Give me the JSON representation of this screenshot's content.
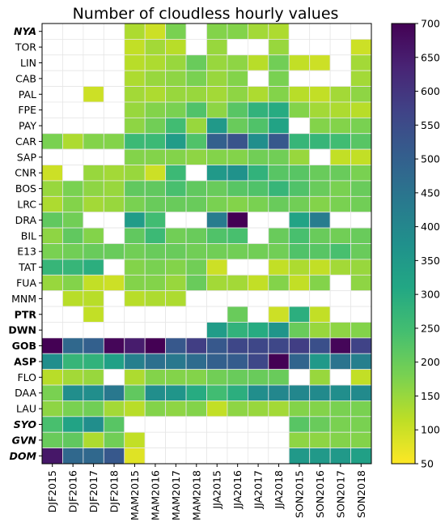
{
  "chart_data": {
    "type": "heatmap",
    "title": "Number of cloudless hourly values",
    "columns": [
      "DJF2015",
      "DJF2016",
      "DJF2017",
      "DJF2018",
      "MAM2015",
      "MAM2016",
      "MAM2017",
      "MAM2018",
      "JJA2015",
      "JJA2016",
      "JJA2017",
      "JJA2018",
      "SON2015",
      "SON2016",
      "SON2017",
      "SON2018"
    ],
    "rows": [
      {
        "label": "NYA",
        "style": "green-bold-italic",
        "values": [
          null,
          null,
          null,
          null,
          130,
          100,
          180,
          null,
          170,
          170,
          140,
          130,
          null,
          null,
          null,
          null
        ]
      },
      {
        "label": "TOR",
        "style": "normal",
        "values": [
          null,
          null,
          null,
          null,
          110,
          140,
          120,
          null,
          150,
          null,
          null,
          150,
          null,
          null,
          null,
          100
        ]
      },
      {
        "label": "LIN",
        "style": "normal",
        "values": [
          null,
          null,
          null,
          null,
          120,
          130,
          150,
          200,
          150,
          160,
          120,
          190,
          110,
          100,
          null,
          140
        ]
      },
      {
        "label": "CAB",
        "style": "normal",
        "values": [
          null,
          null,
          null,
          null,
          130,
          150,
          160,
          180,
          150,
          170,
          null,
          180,
          null,
          null,
          null,
          140
        ]
      },
      {
        "label": "PAL",
        "style": "normal",
        "values": [
          null,
          null,
          100,
          null,
          140,
          130,
          150,
          150,
          140,
          160,
          130,
          170,
          120,
          110,
          140,
          160
        ]
      },
      {
        "label": "FPE",
        "style": "normal",
        "values": [
          null,
          null,
          null,
          null,
          150,
          170,
          180,
          230,
          160,
          220,
          280,
          300,
          170,
          140,
          130,
          120
        ]
      },
      {
        "label": "PAY",
        "style": "normal",
        "values": [
          null,
          null,
          null,
          null,
          160,
          190,
          250,
          150,
          350,
          200,
          230,
          320,
          null,
          170,
          170,
          180
        ]
      },
      {
        "label": "CAR",
        "style": "normal",
        "values": [
          180,
          130,
          170,
          170,
          260,
          260,
          340,
          230,
          500,
          530,
          380,
          520,
          270,
          270,
          250,
          220
        ]
      },
      {
        "label": "SAP",
        "style": "normal",
        "values": [
          null,
          null,
          null,
          null,
          170,
          170,
          170,
          160,
          170,
          170,
          190,
          190,
          150,
          null,
          110,
          110
        ]
      },
      {
        "label": "CNR",
        "style": "normal",
        "values": [
          100,
          null,
          150,
          140,
          150,
          100,
          260,
          null,
          350,
          370,
          280,
          220,
          220,
          200,
          200,
          180
        ]
      },
      {
        "label": "BOS",
        "style": "normal",
        "values": [
          150,
          180,
          160,
          150,
          210,
          210,
          240,
          210,
          200,
          220,
          230,
          270,
          230,
          200,
          180,
          200
        ]
      },
      {
        "label": "LRC",
        "style": "normal",
        "values": [
          130,
          170,
          140,
          150,
          180,
          200,
          200,
          200,
          180,
          170,
          180,
          200,
          190,
          170,
          180,
          190
        ]
      },
      {
        "label": "DRA",
        "style": "normal",
        "values": [
          210,
          190,
          null,
          null,
          340,
          250,
          null,
          null,
          430,
          700,
          null,
          null,
          320,
          430,
          null,
          null
        ]
      },
      {
        "label": "BIL",
        "style": "normal",
        "values": [
          160,
          210,
          170,
          null,
          210,
          260,
          190,
          200,
          230,
          240,
          null,
          200,
          240,
          200,
          190,
          200
        ]
      },
      {
        "label": "E13",
        "style": "normal",
        "values": [
          180,
          190,
          200,
          200,
          190,
          200,
          200,
          190,
          190,
          190,
          190,
          190,
          230,
          220,
          240,
          200
        ]
      },
      {
        "label": "TAT",
        "style": "normal",
        "values": [
          270,
          270,
          290,
          null,
          170,
          180,
          170,
          190,
          100,
          null,
          null,
          110,
          130,
          110,
          140,
          150
        ]
      },
      {
        "label": "FUA",
        "style": "normal",
        "values": [
          150,
          170,
          110,
          100,
          170,
          170,
          150,
          200,
          140,
          140,
          110,
          170,
          110,
          170,
          null,
          160
        ]
      },
      {
        "label": "MNM",
        "style": "normal",
        "values": [
          null,
          120,
          120,
          null,
          120,
          130,
          130,
          null,
          null,
          null,
          null,
          null,
          null,
          null,
          null,
          null
        ]
      },
      {
        "label": "PTR",
        "style": "blue-bold",
        "values": [
          null,
          null,
          110,
          null,
          null,
          null,
          null,
          null,
          null,
          200,
          null,
          100,
          290,
          110,
          null,
          null
        ]
      },
      {
        "label": "DWN",
        "style": "blue-bold",
        "values": [
          null,
          null,
          null,
          null,
          null,
          null,
          null,
          null,
          340,
          280,
          300,
          360,
          200,
          150,
          160,
          170
        ]
      },
      {
        "label": "GOB",
        "style": "blue-bold",
        "values": [
          700,
          480,
          500,
          690,
          650,
          700,
          520,
          580,
          520,
          560,
          560,
          560,
          580,
          540,
          690,
          570
        ]
      },
      {
        "label": "ASP",
        "style": "blue-bold",
        "values": [
          380,
          270,
          280,
          330,
          420,
          460,
          440,
          470,
          500,
          510,
          560,
          700,
          490,
          350,
          450,
          420
        ]
      },
      {
        "label": "FLO",
        "style": "normal",
        "values": [
          120,
          140,
          150,
          null,
          130,
          170,
          170,
          170,
          190,
          200,
          200,
          200,
          null,
          150,
          null,
          110
        ]
      },
      {
        "label": "DAA",
        "style": "normal",
        "values": [
          180,
          380,
          380,
          440,
          210,
          380,
          360,
          300,
          250,
          290,
          380,
          400,
          400,
          390,
          380,
          390
        ]
      },
      {
        "label": "LAU",
        "style": "normal",
        "values": [
          160,
          180,
          190,
          140,
          120,
          170,
          160,
          170,
          110,
          160,
          150,
          140,
          170,
          170,
          180,
          180
        ]
      },
      {
        "label": "SYO",
        "style": "green-bold-italic",
        "values": [
          240,
          320,
          380,
          220,
          null,
          null,
          null,
          null,
          null,
          null,
          null,
          null,
          220,
          200,
          180,
          180
        ]
      },
      {
        "label": "GVN",
        "style": "green-bold-italic",
        "values": [
          200,
          210,
          130,
          190,
          110,
          null,
          null,
          null,
          null,
          null,
          null,
          null,
          160,
          160,
          170,
          170
        ]
      },
      {
        "label": "DOM",
        "style": "green-bold-italic",
        "values": [
          660,
          480,
          480,
          520,
          80,
          null,
          null,
          null,
          null,
          null,
          null,
          null,
          350,
          350,
          350,
          330
        ]
      }
    ],
    "colorbar": {
      "min": 50,
      "max": 700,
      "ticks": [
        50,
        100,
        150,
        200,
        250,
        300,
        350,
        400,
        450,
        500,
        550,
        600,
        650,
        700
      ],
      "colormap": "viridis-reversed"
    },
    "label_colors": {
      "green-bold-italic": "#1f9e89",
      "blue-bold": "#355f8d",
      "normal": "#000000"
    },
    "grid": true
  }
}
